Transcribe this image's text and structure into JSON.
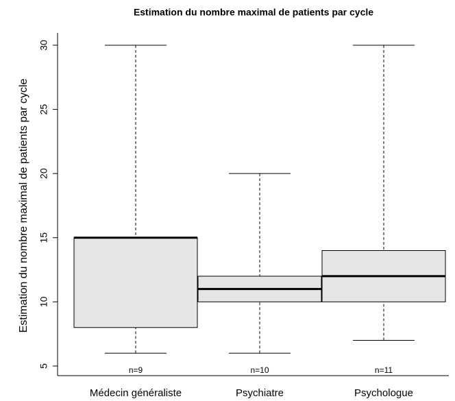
{
  "chart_data": {
    "type": "box",
    "title": "Estimation du nombre maximal de patients par cycle",
    "y_label": "Estimation du nombre maximal de patients par cycle",
    "categories": [
      "Médecin généraliste",
      "Psychiatre",
      "Psychologue"
    ],
    "stats": [
      {
        "min": 6,
        "q1": 8,
        "median": 15,
        "q3": 15,
        "max": 30
      },
      {
        "min": 6,
        "q1": 10,
        "median": 11,
        "q3": 12,
        "max": 20
      },
      {
        "min": 7,
        "q1": 10,
        "median": 12,
        "q3": 14,
        "max": 30
      }
    ],
    "annotations": [
      "n=9",
      "n=10",
      "n=11"
    ],
    "color": "#e5e5e5",
    "ylim": [
      4.25,
      30.96
    ],
    "yticks": [
      5,
      10,
      15,
      20,
      25,
      30
    ]
  }
}
